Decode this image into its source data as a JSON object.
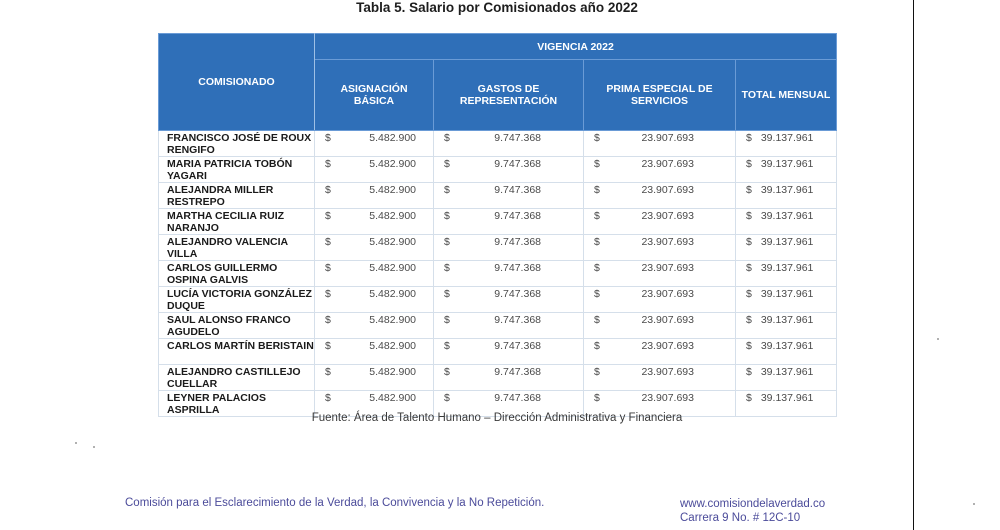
{
  "document": {
    "title": "Tabla 5. Salario por Comisionados año 2022",
    "source": "Fuente: Área de Talento Humano – Dirección Administrativa y Financiera",
    "footer": {
      "organization": "Comisión para el Esclarecimiento de la Verdad, la Convivencia y la No Repetición.",
      "website": "www.comisiondelaverdad.co",
      "address": "Carrera 9 No. # 12C-10"
    },
    "colors": {
      "header_bg": "#2f6fb8",
      "header_text": "#ffffff",
      "footer_text": "#4b4b9a"
    }
  },
  "table": {
    "headers": {
      "commissioner": "COMISIONADO",
      "group": "VIGENCIA 2022",
      "columns": [
        "ASIGNACIÓN BÁSICA",
        "GASTOS DE REPRESENTACIÓN",
        "PRIMA ESPECIAL DE SERVICIOS",
        "TOTAL MENSUAL"
      ]
    },
    "currency_symbol": "$",
    "rows": [
      {
        "name": "FRANCISCO JOSÉ DE ROUX RENGIFO",
        "asignacion": "5.482.900",
        "gastos": "9.747.368",
        "prima": "23.907.693",
        "total": "39.137.961"
      },
      {
        "name": "MARIA PATRICIA TOBÓN YAGARI",
        "asignacion": "5.482.900",
        "gastos": "9.747.368",
        "prima": "23.907.693",
        "total": "39.137.961"
      },
      {
        "name": "ALEJANDRA MILLER RESTREPO",
        "asignacion": "5.482.900",
        "gastos": "9.747.368",
        "prima": "23.907.693",
        "total": "39.137.961"
      },
      {
        "name": "MARTHA CECILIA RUIZ NARANJO",
        "asignacion": "5.482.900",
        "gastos": "9.747.368",
        "prima": "23.907.693",
        "total": "39.137.961"
      },
      {
        "name": "ALEJANDRO VALENCIA VILLA",
        "asignacion": "5.482.900",
        "gastos": "9.747.368",
        "prima": "23.907.693",
        "total": "39.137.961"
      },
      {
        "name": "CARLOS GUILLERMO OSPINA GALVIS",
        "asignacion": "5.482.900",
        "gastos": "9.747.368",
        "prima": "23.907.693",
        "total": "39.137.961"
      },
      {
        "name": "LUCÍA VICTORIA GONZÁLEZ DUQUE",
        "asignacion": "5.482.900",
        "gastos": "9.747.368",
        "prima": "23.907.693",
        "total": "39.137.961"
      },
      {
        "name": "SAUL ALONSO FRANCO AGUDELO",
        "asignacion": "5.482.900",
        "gastos": "9.747.368",
        "prima": "23.907.693",
        "total": "39.137.961"
      },
      {
        "name": "CARLOS MARTÍN BERISTAIN",
        "asignacion": "5.482.900",
        "gastos": "9.747.368",
        "prima": "23.907.693",
        "total": "39.137.961"
      },
      {
        "name": "ALEJANDRO CASTILLEJO CUELLAR",
        "asignacion": "5.482.900",
        "gastos": "9.747.368",
        "prima": "23.907.693",
        "total": "39.137.961"
      },
      {
        "name": "LEYNER PALACIOS ASPRILLA",
        "asignacion": "5.482.900",
        "gastos": "9.747.368",
        "prima": "23.907.693",
        "total": "39.137.961"
      }
    ]
  }
}
